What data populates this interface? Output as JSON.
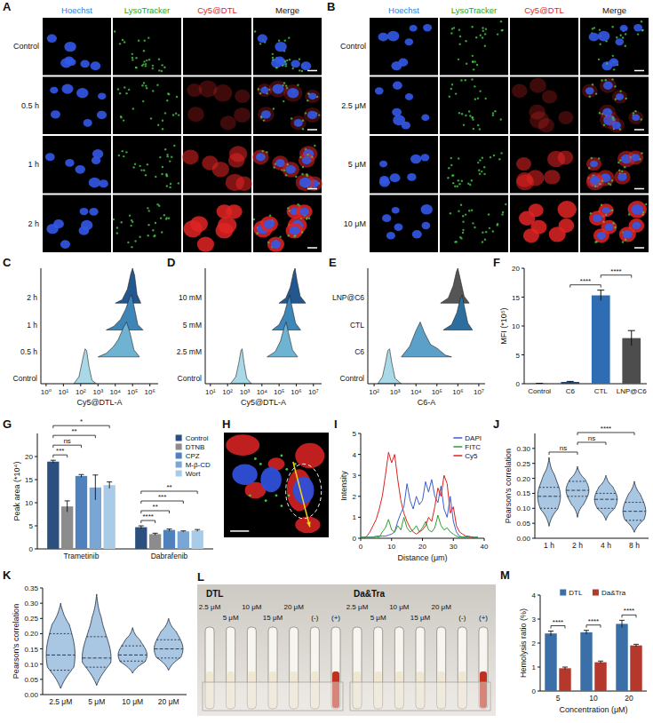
{
  "images": [
    {
      "panel": "A",
      "type": "microscopy",
      "columns": [
        "Hoechst",
        "LysoTracker",
        "Cy5@DTL",
        "Merge"
      ],
      "colors": [
        "#2f7fd8",
        "#2ca02c",
        "#e02828",
        "#111111"
      ],
      "rows": [
        "Control",
        "0.5 h",
        "1 h",
        "2 h"
      ]
    },
    {
      "panel": "B",
      "type": "microscopy",
      "columns": [
        "Hoechst",
        "LysoTracker",
        "Cy5@DTL",
        "Merge"
      ],
      "colors": [
        "#2f7fd8",
        "#2ca02c",
        "#e02828",
        "#111111"
      ],
      "rows": [
        "Control",
        "2.5 μM",
        "5 μM",
        "10 μM"
      ]
    },
    {
      "panel": "H",
      "type": "microscopy"
    },
    {
      "panel": "L",
      "type": "photo",
      "groups": [
        "DTL",
        "Da&Tra"
      ],
      "labels": [
        "2.5 μM",
        "5 μM",
        "10 μM",
        "15 μM",
        "20 μM",
        "(-)",
        "(+)"
      ]
    }
  ],
  "chart_data": [
    {
      "panel": "C",
      "type": "ridgeline",
      "x_label": "Cy5@DTL-A",
      "log": "x",
      "tick_labels": "x",
      "xlim": [
        0.5,
        3000000
      ],
      "xticks": [
        {
          "value": 1,
          "label": "10⁰"
        },
        {
          "value": 10,
          "label": "10¹"
        },
        {
          "value": 100,
          "label": "10²"
        },
        {
          "value": 1000,
          "label": "10³"
        },
        {
          "value": 10000,
          "label": "10⁴"
        },
        {
          "value": 100000,
          "label": "10⁵"
        },
        {
          "value": 1000000,
          "label": "10⁶"
        }
      ],
      "series": [
        {
          "name": "Control",
          "color": "#a9d8e6",
          "x": [
            40,
            80,
            130,
            180,
            220,
            300,
            450,
            800
          ],
          "values": [
            0,
            0.2,
            0.7,
            1,
            0.95,
            0.5,
            0.1,
            0
          ]
        },
        {
          "name": "0.5 h",
          "color": "#6fb3d2",
          "x": [
            1000,
            3000,
            8000,
            15000,
            30000,
            45000,
            70000,
            120000,
            250000
          ],
          "values": [
            0,
            0.1,
            0.3,
            0.5,
            0.85,
            1,
            0.7,
            0.2,
            0
          ]
        },
        {
          "name": "1 h",
          "color": "#3f86b8",
          "x": [
            3000,
            8000,
            20000,
            40000,
            70000,
            90000,
            130000,
            200000,
            400000
          ],
          "values": [
            0,
            0.1,
            0.3,
            0.6,
            0.95,
            1,
            0.6,
            0.15,
            0
          ]
        },
        {
          "name": "2 h",
          "color": "#24578f",
          "x": [
            10000,
            25000,
            50000,
            80000,
            100000,
            130000,
            180000,
            300000
          ],
          "values": [
            0,
            0.1,
            0.4,
            0.85,
            1,
            0.8,
            0.25,
            0
          ]
        }
      ]
    },
    {
      "panel": "D",
      "type": "ridgeline",
      "x_label": "Cy5@DTL-A",
      "log": "x",
      "tick_labels": "x",
      "xlim": [
        5,
        30000000
      ],
      "xticks": [
        {
          "value": 10,
          "label": "10¹"
        },
        {
          "value": 100,
          "label": "10²"
        },
        {
          "value": 1000,
          "label": "10³"
        },
        {
          "value": 10000,
          "label": "10⁴"
        },
        {
          "value": 100000,
          "label": "10⁵"
        },
        {
          "value": 1000000,
          "label": "10⁶"
        },
        {
          "value": 10000000,
          "label": "10⁷"
        }
      ],
      "series": [
        {
          "name": "Control",
          "color": "#a9d8e6",
          "x": [
            150,
            300,
            450,
            600,
            700,
            900,
            1300,
            2500
          ],
          "values": [
            0,
            0.2,
            0.6,
            0.95,
            1,
            0.6,
            0.15,
            0
          ]
        },
        {
          "name": "2.5 mM",
          "color": "#6fb3d2",
          "x": [
            20000,
            60000,
            120000,
            200000,
            260000,
            350000,
            600000,
            1200000
          ],
          "values": [
            0,
            0.15,
            0.45,
            0.85,
            1,
            0.7,
            0.2,
            0
          ]
        },
        {
          "name": "5 mM",
          "color": "#3f86b8",
          "x": [
            40000,
            100000,
            200000,
            330000,
            420000,
            550000,
            900000,
            1800000
          ],
          "values": [
            0,
            0.15,
            0.45,
            0.85,
            1,
            0.7,
            0.2,
            0
          ]
        },
        {
          "name": "10 mM",
          "color": "#24578f",
          "x": [
            100000,
            250000,
            450000,
            700000,
            850000,
            1100000,
            1700000,
            3500000
          ],
          "values": [
            0,
            0.15,
            0.45,
            0.9,
            1,
            0.65,
            0.2,
            0
          ]
        }
      ]
    },
    {
      "panel": "E",
      "type": "ridgeline",
      "x_label": "C6-A",
      "log": "x",
      "tick_labels": "x",
      "xlim": [
        50,
        20000000
      ],
      "xticks": [
        {
          "value": 100,
          "label": "10²"
        },
        {
          "value": 1000,
          "label": "10³"
        },
        {
          "value": 10000,
          "label": "10⁴"
        },
        {
          "value": 100000,
          "label": "10⁵"
        },
        {
          "value": 1000000,
          "label": "10⁶"
        },
        {
          "value": 10000000,
          "label": "10⁷"
        }
      ],
      "series": [
        {
          "name": "Control",
          "color": "#a9d8e6",
          "x": [
            150,
            250,
            350,
            450,
            550,
            700,
            1000,
            2000
          ],
          "values": [
            0,
            0.2,
            0.6,
            0.95,
            1,
            0.6,
            0.15,
            0
          ]
        },
        {
          "name": "C6",
          "color": "#5aa0c8",
          "x": [
            2000,
            5000,
            10000,
            16000,
            25000,
            50000,
            100000,
            250000,
            500000
          ],
          "values": [
            0,
            0.3,
            0.75,
            1,
            0.7,
            0.35,
            0.25,
            0.05,
            0
          ]
        },
        {
          "name": "CTL",
          "color": "#2d6e9e",
          "x": [
            200000,
            500000,
            900000,
            1300000,
            1600000,
            2000000,
            3000000,
            5000000
          ],
          "values": [
            0,
            0.15,
            0.5,
            0.9,
            1,
            0.7,
            0.2,
            0
          ]
        },
        {
          "name": "LNP@C6",
          "color": "#555555",
          "x": [
            150000,
            350000,
            600000,
            850000,
            1000000,
            1300000,
            2000000,
            3500000
          ],
          "values": [
            0,
            0.15,
            0.5,
            0.9,
            1,
            0.7,
            0.2,
            0
          ]
        }
      ]
    },
    {
      "panel": "F",
      "type": "bar",
      "y_label": "MFI (*10⁵)",
      "categories": [
        "Control",
        "C6",
        "CTL",
        "LNP@C6"
      ],
      "values": [
        0.05,
        0.3,
        15.3,
        7.9
      ],
      "errors": [
        0.02,
        0.1,
        0.9,
        1.3
      ],
      "colors": [
        "#4a78b0",
        "#1f3f6e",
        "#2e6db4",
        "#4d4d4d"
      ],
      "ylim": [
        0,
        20
      ],
      "yticks": [
        0,
        5,
        10,
        15,
        20
      ],
      "annotations": [
        {
          "between": [
            "C6",
            "CTL"
          ],
          "text": "****"
        },
        {
          "between": [
            "CTL",
            "LNP@C6"
          ],
          "text": "****"
        }
      ]
    },
    {
      "panel": "G",
      "type": "bar",
      "y_label": "Peak area (*10⁴)",
      "categories": [
        "Trametinib",
        "Dabrafenib"
      ],
      "ylim": [
        0,
        25
      ],
      "yticks": [
        0,
        5,
        10,
        15,
        20
      ],
      "legend": "top-right",
      "series": [
        {
          "name": "Control",
          "color": "#2b4f7e",
          "values": [
            18.9,
            4.7
          ],
          "errors": [
            0.3,
            0.3
          ]
        },
        {
          "name": "DTNB",
          "color": "#8c8c8c",
          "values": [
            9.2,
            3.2
          ],
          "errors": [
            1.2,
            0.2
          ]
        },
        {
          "name": "CPZ",
          "color": "#4f81bd",
          "values": [
            15.8,
            4.1
          ],
          "errors": [
            0.3,
            0.2
          ]
        },
        {
          "name": "M-β-CD",
          "color": "#7aa6d6",
          "values": [
            13.3,
            3.8
          ],
          "errors": [
            2.7,
            0.1
          ]
        },
        {
          "name": "Wort",
          "color": "#a8cbe8",
          "values": [
            13.8,
            4.0
          ],
          "errors": [
            0.7,
            0.2
          ]
        }
      ],
      "annotations": [
        {
          "group": "Trametinib",
          "between": [
            "Control",
            "DTNB"
          ],
          "text": "***"
        },
        {
          "group": "Trametinib",
          "between": [
            "Control",
            "CPZ"
          ],
          "text": "ns"
        },
        {
          "group": "Trametinib",
          "between": [
            "Control",
            "M-β-CD"
          ],
          "text": "**"
        },
        {
          "group": "Trametinib",
          "between": [
            "Control",
            "Wort"
          ],
          "text": "*"
        },
        {
          "group": "Dabrafenib",
          "between": [
            "Control",
            "DTNB"
          ],
          "text": "****"
        },
        {
          "group": "Dabrafenib",
          "between": [
            "Control",
            "CPZ"
          ],
          "text": "**"
        },
        {
          "group": "Dabrafenib",
          "between": [
            "Control",
            "M-β-CD"
          ],
          "text": "***"
        },
        {
          "group": "Dabrafenib",
          "between": [
            "Control",
            "Wort"
          ],
          "text": "**"
        }
      ]
    },
    {
      "panel": "I",
      "type": "line",
      "x_label": "Distance (μm)",
      "y_label": "Intensity",
      "legend": "top-right",
      "xlim": [
        0,
        40
      ],
      "xticks": [
        0,
        10,
        20,
        30,
        40
      ],
      "ylim": [
        0,
        5
      ],
      "yticks": [
        0,
        1,
        2,
        3,
        4,
        5
      ],
      "x": [
        0,
        1,
        2,
        3,
        4,
        5,
        6,
        7,
        8,
        9,
        10,
        11,
        12,
        13,
        14,
        15,
        16,
        17,
        18,
        19,
        20,
        21,
        22,
        23,
        24,
        25,
        26,
        27,
        28,
        29,
        30,
        31,
        32,
        33,
        34,
        35,
        36,
        37,
        38
      ],
      "series": [
        {
          "name": "DAPI",
          "color": "#3a5fcd",
          "values": [
            0.05,
            0.05,
            0.05,
            0.05,
            0.05,
            0.1,
            0.1,
            0.1,
            0.1,
            0.15,
            0.2,
            0.3,
            0.8,
            1.2,
            1.5,
            2.6,
            1.8,
            1.4,
            2.0,
            1.6,
            1.8,
            2.7,
            2.2,
            2.8,
            2.0,
            1.7,
            2.5,
            1.4,
            1.0,
            2.0,
            0.8,
            0.3,
            0.1,
            0.05,
            0.05,
            0.05,
            0.05,
            0.05,
            0.05
          ]
        },
        {
          "name": "FITC",
          "color": "#2ca02c",
          "values": [
            0.05,
            0.05,
            0.05,
            0.05,
            0.05,
            0.05,
            0.05,
            0.3,
            0.5,
            0.9,
            0.4,
            0.3,
            0.6,
            0.4,
            1.0,
            0.5,
            0.3,
            0.4,
            0.6,
            0.3,
            0.5,
            0.8,
            0.4,
            0.3,
            0.5,
            1.1,
            0.6,
            0.4,
            0.5,
            0.3,
            0.2,
            0.1,
            0.05,
            0.05,
            0.05,
            0.05,
            0.05,
            0.05,
            0.05
          ]
        },
        {
          "name": "Cy5",
          "color": "#e02020",
          "values": [
            0,
            0,
            0.1,
            0.3,
            0.6,
            0.9,
            1.4,
            2.0,
            3.0,
            4.1,
            3.6,
            4.0,
            2.8,
            1.8,
            1.2,
            0.8,
            0.5,
            0.3,
            0.2,
            0.3,
            0.4,
            0.6,
            1.0,
            0.8,
            1.5,
            2.4,
            2.0,
            3.0,
            2.6,
            1.2,
            1.5,
            0.6,
            0.3,
            0.2,
            0.1,
            0.1,
            0.05,
            0,
            0
          ]
        }
      ]
    },
    {
      "panel": "J",
      "type": "violin",
      "y_label": "Pearson's correlation",
      "categories": [
        "1 h",
        "2 h",
        "4 h",
        "8 h"
      ],
      "color": "#a9c6e3",
      "min": [
        0.04,
        0.07,
        0.06,
        0.02
      ],
      "q1": [
        0.1,
        0.14,
        0.1,
        0.06
      ],
      "median": [
        0.14,
        0.16,
        0.13,
        0.09
      ],
      "q3": [
        0.17,
        0.19,
        0.15,
        0.12
      ],
      "max": [
        0.27,
        0.24,
        0.21,
        0.19
      ],
      "ylim": [
        0,
        0.35
      ],
      "yticks": [
        {
          "value": 0,
          "label": "0.00"
        },
        0.05,
        {
          "value": 0.1,
          "label": "0.10"
        },
        0.15,
        {
          "value": 0.2,
          "label": "0.20"
        },
        0.25,
        {
          "value": 0.3,
          "label": "0.30"
        }
      ],
      "annotations": [
        {
          "between": [
            "1 h",
            "2 h"
          ],
          "text": "ns"
        },
        {
          "between": [
            "2 h",
            "4 h"
          ],
          "text": "ns"
        },
        {
          "between": [
            "2 h",
            "8 h"
          ],
          "text": "****"
        }
      ]
    },
    {
      "panel": "K",
      "type": "violin",
      "y_label": "Pearson's correlation",
      "categories": [
        "2.5 μM",
        "5 μM",
        "10 μM",
        "20 μM"
      ],
      "color": "#a9c6e3",
      "min": [
        0.02,
        0.03,
        0.07,
        0.08
      ],
      "q1": [
        0.08,
        0.09,
        0.11,
        0.12
      ],
      "median": [
        0.13,
        0.12,
        0.13,
        0.15
      ],
      "q3": [
        0.2,
        0.19,
        0.16,
        0.18
      ],
      "max": [
        0.3,
        0.33,
        0.22,
        0.25
      ],
      "ylim": [
        0,
        0.35
      ],
      "yticks": [
        {
          "value": 0,
          "label": "0.00"
        },
        0.05,
        {
          "value": 0.1,
          "label": "0.10"
        },
        0.15,
        {
          "value": 0.2,
          "label": "0.20"
        },
        0.25,
        {
          "value": 0.3,
          "label": "0.30"
        },
        0.35
      ]
    },
    {
      "panel": "M",
      "type": "bar",
      "y_label": "Hemolysis ratio (%)",
      "x_label": "Concentration (μM)",
      "categories": [
        "5",
        "10",
        "20"
      ],
      "ylim": [
        0,
        4
      ],
      "yticks": [
        0,
        1,
        2,
        3,
        4
      ],
      "legend": "top",
      "series": [
        {
          "name": "DTL",
          "color": "#3b6fa8",
          "values": [
            2.4,
            2.45,
            2.8
          ],
          "errors": [
            0.1,
            0.08,
            0.15
          ]
        },
        {
          "name": "Da&Tra",
          "color": "#b5382d",
          "values": [
            0.95,
            1.2,
            1.9
          ],
          "errors": [
            0.05,
            0.05,
            0.05
          ]
        }
      ],
      "annotations": [
        {
          "group": "5",
          "between": [
            "DTL",
            "Da&Tra"
          ],
          "text": "****"
        },
        {
          "group": "10",
          "between": [
            "DTL",
            "Da&Tra"
          ],
          "text": "****"
        },
        {
          "group": "20",
          "between": [
            "DTL",
            "Da&Tra"
          ],
          "text": "****"
        }
      ]
    }
  ]
}
